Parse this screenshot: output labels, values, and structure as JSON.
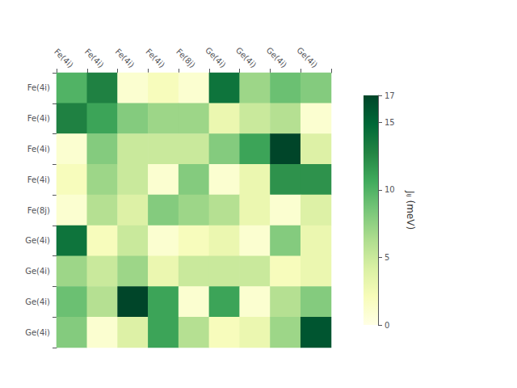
{
  "chart_data": {
    "type": "heatmap",
    "categories": [
      "Fe(4i)",
      "Fe(4i)",
      "Fe(4i)",
      "Fe(4i)",
      "Fe(8j)",
      "Ge(4i)",
      "Ge(4i)",
      "Ge(4i)",
      "Ge(4i)"
    ],
    "matrix": [
      [
        10,
        13,
        1,
        2,
        1,
        14,
        7,
        9,
        8
      ],
      [
        13,
        11,
        8,
        7,
        7,
        3,
        5,
        6,
        1
      ],
      [
        1,
        8,
        5,
        5,
        5,
        8,
        11,
        17,
        4
      ],
      [
        2,
        7,
        5,
        1,
        8,
        1,
        3,
        12,
        12
      ],
      [
        1,
        6,
        4,
        8,
        7,
        6,
        3,
        1,
        4
      ],
      [
        14,
        2,
        5,
        1,
        2,
        3,
        1,
        8,
        3
      ],
      [
        7,
        5,
        7,
        3,
        5,
        5,
        5,
        2,
        3
      ],
      [
        9,
        6,
        17,
        11,
        1,
        11,
        1,
        6,
        8
      ],
      [
        8,
        1,
        4,
        11,
        6,
        2,
        3,
        7,
        16
      ]
    ],
    "colorbar_range": [
      0,
      17
    ],
    "colorbar_ticks": [
      0,
      5,
      10,
      15
    ],
    "colorbar_label": "Jᵢⱼ (meV)",
    "colors": [
      "#ffffe5",
      "#f7fcb9",
      "#d9f0a3",
      "#addd8e",
      "#78c679",
      "#41ab5d",
      "#238443",
      "#006837",
      "#004529"
    ],
    "grid": false
  }
}
